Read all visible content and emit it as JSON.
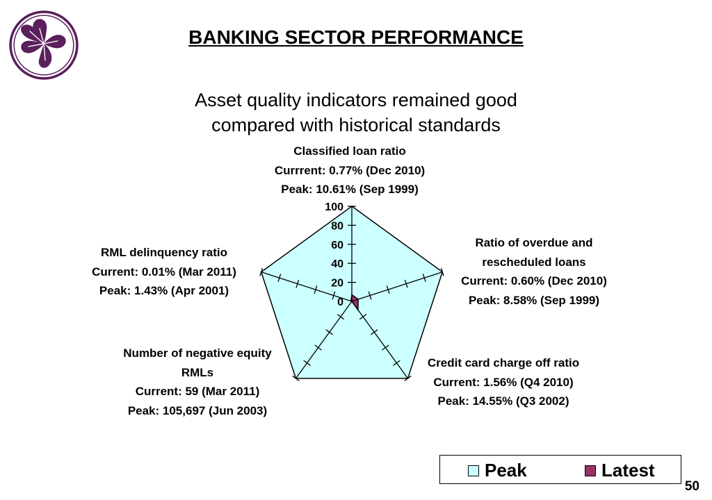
{
  "header": {
    "title": "BANKING SECTOR PERFORMANCE",
    "subtitle_line1": "Asset quality indicators remained good",
    "subtitle_line2": "compared with historical standards"
  },
  "page_number": "50",
  "colors": {
    "brand": "#5a1f5c",
    "peak_fill": "#ccffff",
    "latest_fill": "#993366"
  },
  "chart_data": {
    "type": "radar",
    "title": "",
    "axes": [
      {
        "lines": [
          "Classified loan ratio",
          "Currrent: 0.77% (Dec 2010)",
          "Peak: 10.61% (Sep 1999)"
        ]
      },
      {
        "lines": [
          "Ratio of overdue and",
          "rescheduled loans",
          "Current:  0.60% (Dec 2010)",
          "Peak: 8.58% (Sep 1999)"
        ]
      },
      {
        "lines": [
          "Credit card charge off ratio",
          "Current:  1.56% (Q4 2010)",
          "Peak: 14.55% (Q3 2002)"
        ]
      },
      {
        "lines": [
          "Number of negative equity",
          "RMLs",
          "Current:  59 (Mar 2011)",
          "Peak: 105,697 (Jun 2003)"
        ]
      },
      {
        "lines": [
          "RML delinquency ratio",
          "Current:  0.01% (Mar 2011)",
          "Peak: 1.43% (Apr 2001)"
        ]
      }
    ],
    "radial_ticks": [
      "0",
      "20",
      "40",
      "60",
      "80",
      "100"
    ],
    "rmin": 0,
    "rmax": 100,
    "series": [
      {
        "name": "Peak",
        "values": [
          100,
          100,
          100,
          100,
          100
        ]
      },
      {
        "name": "Latest",
        "values": [
          7,
          7,
          11,
          0,
          1
        ]
      }
    ],
    "legend": {
      "position": "bottom-right",
      "labels": [
        "Peak",
        "Latest"
      ]
    },
    "grid": false
  }
}
